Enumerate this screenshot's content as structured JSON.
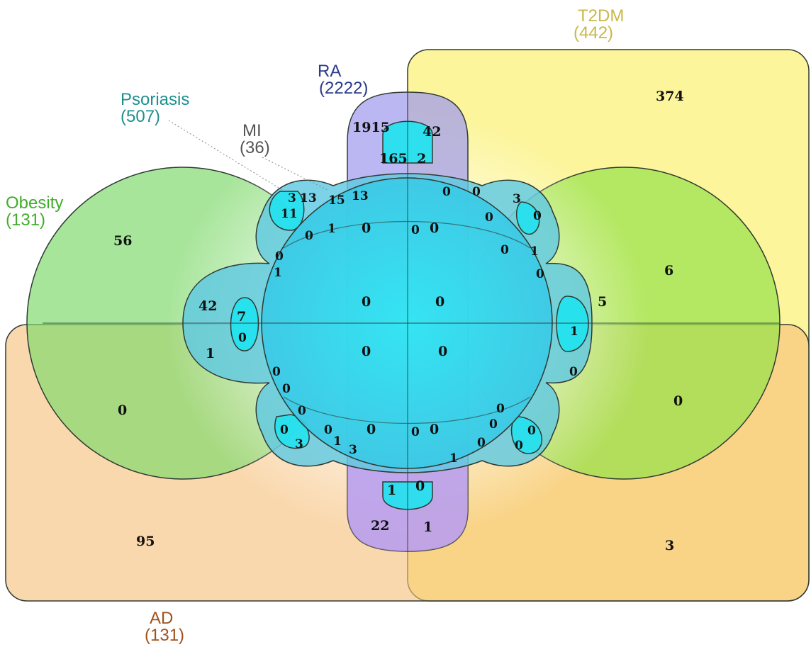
{
  "sets": {
    "t2dm": {
      "name": "T2DM",
      "size": "(442)",
      "color": "#c8b84a"
    },
    "ra": {
      "name": "RA",
      "size": "(2222)",
      "color": "#2b3a8a"
    },
    "psoriasis": {
      "name": "Psoriasis",
      "size": "(507)",
      "color": "#1e8f8f"
    },
    "mi": {
      "name": "MI",
      "size": "(36)",
      "color": "#555555"
    },
    "obesity": {
      "name": "Obesity",
      "size": "(131)",
      "color": "#3fae2a"
    },
    "ad": {
      "name": "AD",
      "size": "(131)",
      "color": "#a0521e"
    }
  },
  "colors": {
    "t2dm_fill": "#fbf27a",
    "ad_fill": "#f9c48a",
    "obesity_fill": "#8fe07a",
    "obesity_right_fill": "#a6e84a",
    "ra_fill": "#a9a6f0",
    "ra_bottom_fill": "#c79ff0",
    "core_fill": "#22e6f2",
    "psoriasis_fill": "#6fd2e6"
  },
  "counts": {
    "t2dm_only": "374",
    "ad_only": "95",
    "ad_t2dm": "3",
    "obesity_only": "56",
    "obesity_ad": "0",
    "obesity_right_top": "6",
    "obesity_right_bottom": "0",
    "ra_top_left": "1915",
    "ra_top_right": "42",
    "ra_top_inner_left": "165",
    "ra_top_inner_right": "2",
    "ra_bottom_left": "22",
    "ra_bottom_right": "1",
    "ra_bottom_inner_left": "1",
    "ra_bottom_inner_right": "0",
    "lobe_ul_a": "3",
    "lobe_ul_b": "13",
    "lobe_ul_c": "11",
    "lobe_ul_d": "15",
    "lobe_ul_e": "13",
    "lobe_ul_f": "0",
    "lobe_ul_g": "1",
    "lobe_ur_a": "0",
    "lobe_ur_b": "0",
    "lobe_ur_c": "3",
    "lobe_ur_d": "0",
    "lobe_ur_e": "0",
    "lobe_ur_f": "0",
    "lobe_ur_g": "1",
    "lobe_l_a": "0",
    "lobe_l_b": "1",
    "lobe_l_c": "42",
    "lobe_l_d": "7",
    "lobe_l_e": "0",
    "lobe_l_f": "1",
    "lobe_l_g": "0",
    "lobe_l_h": "0",
    "lobe_r_a": "0",
    "lobe_r_b": "5",
    "lobe_r_c": "1",
    "lobe_r_d": "0",
    "lobe_ll_a": "0",
    "lobe_ll_b": "0",
    "lobe_ll_c": "3",
    "lobe_ll_d": "0",
    "lobe_ll_e": "1",
    "lobe_ll_f": "3",
    "lobe_lr_a": "0",
    "lobe_lr_b": "0",
    "lobe_lr_c": "0",
    "lobe_lr_d": "0",
    "lobe_lr_e": "0",
    "lobe_lr_f": "1",
    "center_1": "0",
    "center_2": "0",
    "center_3": "0",
    "center_4": "0",
    "center_5": "0",
    "center_6": "0",
    "center_7": "0",
    "center_8": "0",
    "center_9": "0",
    "center_10": "0"
  }
}
